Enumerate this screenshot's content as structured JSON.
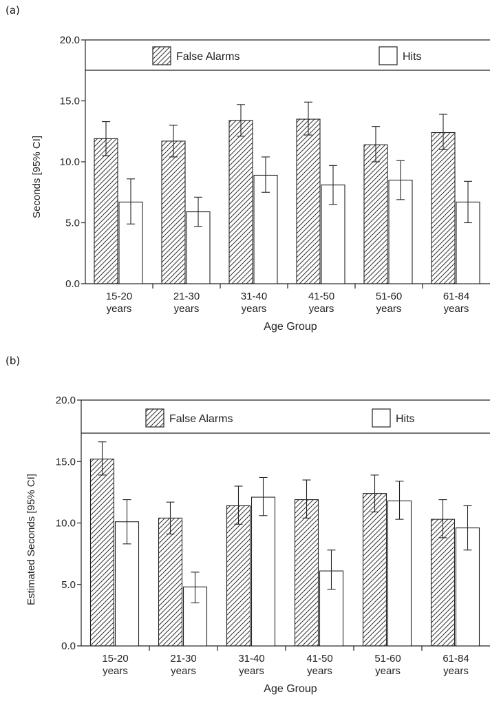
{
  "chart_data": [
    {
      "panel_label": "(a)",
      "type": "bar",
      "categories": [
        [
          "15-20",
          "years"
        ],
        [
          "21-30",
          "years"
        ],
        [
          "31-40",
          "years"
        ],
        [
          "41-50",
          "years"
        ],
        [
          "51-60",
          "years"
        ],
        [
          "61-84",
          "years"
        ]
      ],
      "series": [
        {
          "name": "False Alarms",
          "pattern": "hatched",
          "values": [
            11.9,
            11.7,
            13.4,
            13.5,
            11.4,
            12.4
          ],
          "ci_low": [
            10.5,
            10.4,
            12.1,
            12.2,
            10.0,
            11.0
          ],
          "ci_high": [
            13.3,
            13.0,
            14.7,
            14.9,
            12.9,
            13.9
          ]
        },
        {
          "name": "Hits",
          "pattern": "open",
          "values": [
            6.7,
            5.9,
            8.9,
            8.1,
            8.5,
            6.7
          ],
          "ci_low": [
            4.9,
            4.7,
            7.5,
            6.5,
            6.9,
            5.0
          ],
          "ci_high": [
            8.6,
            7.1,
            10.4,
            9.7,
            10.1,
            8.4
          ]
        }
      ],
      "yticks": [
        "0.0",
        "5.0",
        "10.0",
        "15.0",
        "20.0"
      ],
      "ylim": [
        0,
        20
      ],
      "ylabel": "Seconds  [95% CI]",
      "xlabel": "Age Group",
      "grid": false,
      "legend": "top"
    },
    {
      "panel_label": "(b)",
      "type": "bar",
      "categories": [
        [
          "15-20",
          "years"
        ],
        [
          "21-30",
          "years"
        ],
        [
          "31-40",
          "years"
        ],
        [
          "41-50",
          "years"
        ],
        [
          "51-60",
          "years"
        ],
        [
          "61-84",
          "years"
        ]
      ],
      "series": [
        {
          "name": "False Alarms",
          "pattern": "hatched",
          "values": [
            15.2,
            10.4,
            11.4,
            11.9,
            12.4,
            10.3
          ],
          "ci_low": [
            13.9,
            9.1,
            9.9,
            10.4,
            10.9,
            8.8
          ],
          "ci_high": [
            16.6,
            11.7,
            13.0,
            13.5,
            13.9,
            11.9
          ]
        },
        {
          "name": "Hits",
          "pattern": "open",
          "values": [
            10.1,
            4.8,
            12.1,
            6.1,
            11.8,
            9.6
          ],
          "ci_low": [
            8.3,
            3.5,
            10.6,
            4.6,
            10.3,
            7.8
          ],
          "ci_high": [
            11.9,
            6.0,
            13.7,
            7.8,
            13.4,
            11.4
          ]
        }
      ],
      "yticks": [
        "0.0",
        "5.0",
        "10.0",
        "15.0",
        "20.0"
      ],
      "ylim": [
        0,
        20
      ],
      "ylabel": "Estimated Seconds  [95% CI]",
      "xlabel": "Age Group",
      "grid": false,
      "legend": "top"
    }
  ]
}
